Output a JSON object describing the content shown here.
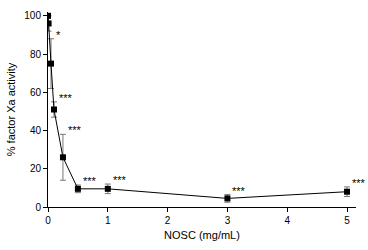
{
  "chart_data": {
    "type": "line",
    "x_label": "NOSC (mg/mL)",
    "y_label": "% factor Xa activity",
    "x": [
      0,
      0.01,
      0.05,
      0.1,
      0.25,
      0.5,
      1,
      3,
      5
    ],
    "values": [
      100,
      96,
      75,
      51,
      26,
      9.5,
      9.5,
      4.5,
      8
    ],
    "errors": [
      1,
      4,
      13,
      4,
      12,
      2,
      2.5,
      2,
      2.5
    ],
    "significance": [
      null,
      null,
      "*",
      "***",
      "***",
      "***",
      "***",
      "***",
      "***"
    ],
    "color": "#000000",
    "marker": "square",
    "line_style": "solid",
    "xlim": [
      0,
      5.15
    ],
    "xticks": [
      0,
      1,
      2,
      3,
      4,
      5
    ],
    "ylim": [
      0,
      102
    ],
    "yticks": [
      0,
      20,
      40,
      60,
      80,
      100
    ],
    "grid": false
  }
}
